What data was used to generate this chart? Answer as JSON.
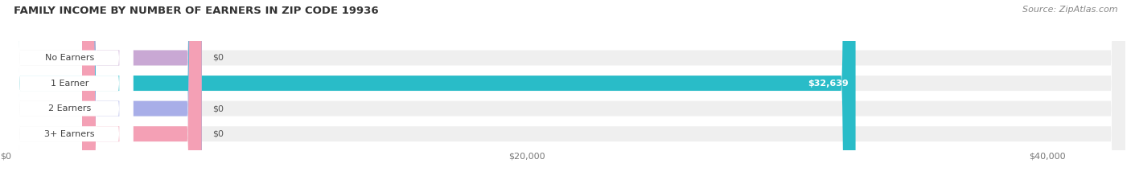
{
  "title": "FAMILY INCOME BY NUMBER OF EARNERS IN ZIP CODE 19936",
  "source": "Source: ZipAtlas.com",
  "categories": [
    "No Earners",
    "1 Earner",
    "2 Earners",
    "3+ Earners"
  ],
  "values": [
    0,
    32639,
    0,
    0
  ],
  "bar_colors": [
    "#c9a8d4",
    "#29bcc8",
    "#a8aee8",
    "#f4a0b5"
  ],
  "bar_bg_color": "#efefef",
  "value_labels": [
    "$0",
    "$32,639",
    "$0",
    "$0"
  ],
  "xlim": [
    0,
    43000
  ],
  "xticks": [
    0,
    20000,
    40000
  ],
  "xtick_labels": [
    "$0",
    "$20,000",
    "$40,000"
  ],
  "figsize": [
    14.06,
    2.34
  ],
  "dpi": 100,
  "background_color": "#ffffff",
  "title_fontsize": 9.5,
  "source_fontsize": 8,
  "bar_label_fontsize": 8,
  "value_label_fontsize": 8
}
